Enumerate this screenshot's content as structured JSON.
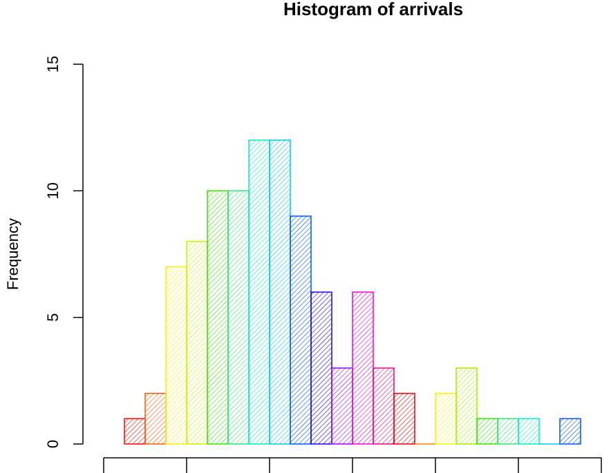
{
  "chart_data": {
    "type": "bar",
    "title": "Histogram of arrivals",
    "xlabel": "",
    "ylabel": "Frequency",
    "ylim": [
      0,
      15
    ],
    "yticks": [
      0,
      5,
      10,
      15
    ],
    "fill_pattern": "diagonal-hatch",
    "bins": [
      {
        "value": 1,
        "color": "#ff0000"
      },
      {
        "value": 2,
        "color": "#ff5a00"
      },
      {
        "value": 7,
        "color": "#ffee00"
      },
      {
        "value": 8,
        "color": "#c8f000"
      },
      {
        "value": 10,
        "color": "#33e600"
      },
      {
        "value": 10,
        "color": "#2ee67a"
      },
      {
        "value": 12,
        "color": "#00f0c0"
      },
      {
        "value": 12,
        "color": "#00c8f0"
      },
      {
        "value": 9,
        "color": "#0050ff"
      },
      {
        "value": 6,
        "color": "#1a00e6"
      },
      {
        "value": 3,
        "color": "#a000f0"
      },
      {
        "value": 6,
        "color": "#f000e0"
      },
      {
        "value": 3,
        "color": "#f00080"
      },
      {
        "value": 2,
        "color": "#e60000"
      },
      {
        "value": 0,
        "color": "#ff8000"
      },
      {
        "value": 2,
        "color": "#ffee00"
      },
      {
        "value": 3,
        "color": "#a0f000"
      },
      {
        "value": 1,
        "color": "#2ee600"
      },
      {
        "value": 1,
        "color": "#2ee67a"
      },
      {
        "value": 1,
        "color": "#00f0c8"
      },
      {
        "value": 0,
        "color": "#00c8f0"
      },
      {
        "value": 1,
        "color": "#0050ff"
      }
    ],
    "xtick_count": 7,
    "grid": false,
    "legend": "none"
  }
}
